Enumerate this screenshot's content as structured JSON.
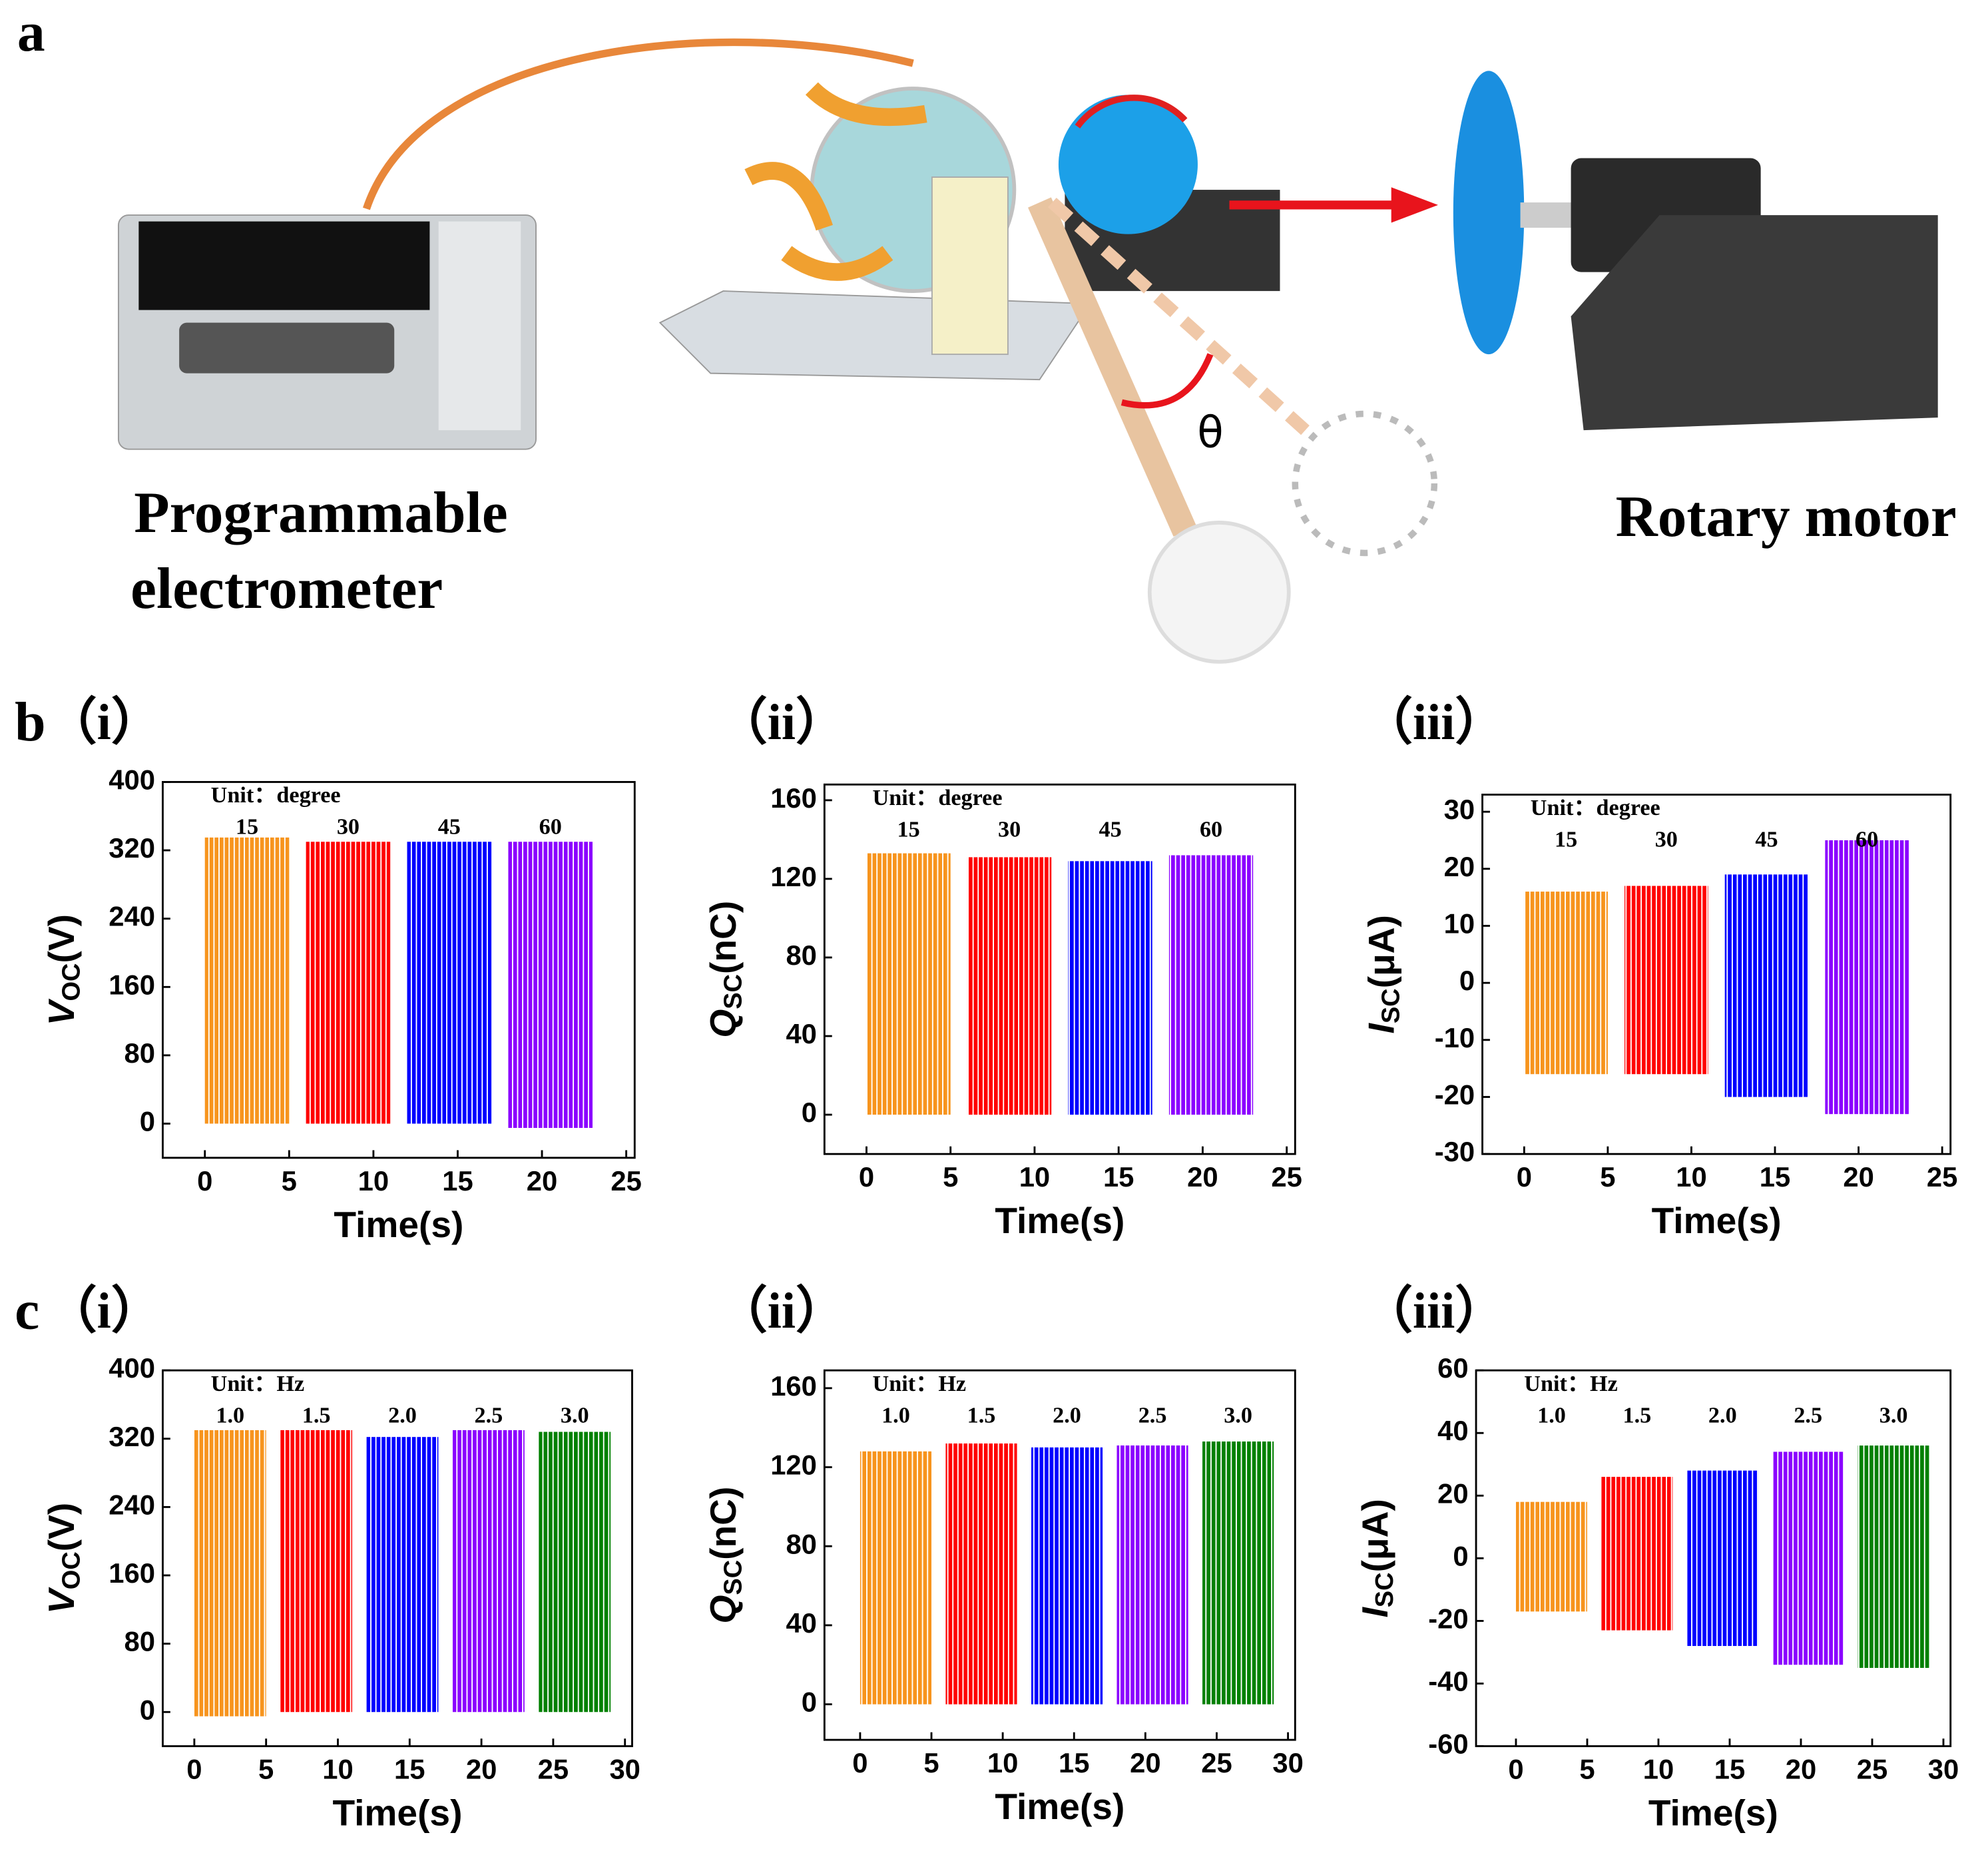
{
  "figure": {
    "a": {
      "label": "a",
      "electrometer": [
        "Programmable",
        "electrometer"
      ],
      "motor": "Rotary motor",
      "theta": "θ"
    },
    "panels": [
      {
        "letter": "b",
        "roman": "（i）"
      },
      {
        "roman": "（ii）"
      },
      {
        "roman": "（iii）"
      },
      {
        "letter": "c",
        "roman": "（i）"
      },
      {
        "roman": "（ii）"
      },
      {
        "roman": "（iii）"
      }
    ]
  },
  "chart_data": [
    {
      "type": "band",
      "xlabel": "Time(s)",
      "ylabel": [
        "V",
        "OC",
        "(V)"
      ],
      "annotation": "Unit：degree",
      "xlim": [
        -2.5,
        25.5
      ],
      "ylim": [
        -40,
        400
      ],
      "xticks": [
        0,
        5,
        10,
        15,
        20,
        25
      ],
      "yticks": [
        0,
        80,
        160,
        240,
        320,
        400
      ],
      "series": [
        {
          "name": "15",
          "color": "#f7941d",
          "x": [
            0,
            5
          ],
          "values": [
            0,
            335
          ]
        },
        {
          "name": "30",
          "color": "#ff0000",
          "x": [
            6,
            11
          ],
          "values": [
            0,
            330
          ]
        },
        {
          "name": "45",
          "color": "#0000ff",
          "x": [
            12,
            17
          ],
          "values": [
            0,
            330
          ]
        },
        {
          "name": "60",
          "color": "#8b00ff",
          "x": [
            18,
            23
          ],
          "values": [
            -5,
            330
          ]
        }
      ]
    },
    {
      "type": "band",
      "xlabel": "Time(s)",
      "ylabel": [
        "Q",
        "SC",
        "(nC)"
      ],
      "annotation": "Unit：degree",
      "xlim": [
        -2.5,
        25.5
      ],
      "ylim": [
        -20,
        168
      ],
      "xticks": [
        0,
        5,
        10,
        15,
        20,
        25
      ],
      "yticks": [
        0,
        40,
        80,
        120,
        160
      ],
      "series": [
        {
          "name": "15",
          "color": "#f7941d",
          "x": [
            0,
            5
          ],
          "values": [
            0,
            133
          ]
        },
        {
          "name": "30",
          "color": "#ff0000",
          "x": [
            6,
            11
          ],
          "values": [
            0,
            131
          ]
        },
        {
          "name": "45",
          "color": "#0000ff",
          "x": [
            12,
            17
          ],
          "values": [
            0,
            129
          ]
        },
        {
          "name": "60",
          "color": "#8b00ff",
          "x": [
            18,
            23
          ],
          "values": [
            0,
            132
          ]
        }
      ]
    },
    {
      "type": "band",
      "xlabel": "Time(s)",
      "ylabel": [
        "I",
        "SC",
        "(μA)"
      ],
      "annotation": "Unit：degree",
      "xlim": [
        -2.5,
        25.5
      ],
      "ylim": [
        -30,
        33
      ],
      "xticks": [
        0,
        5,
        10,
        15,
        20,
        25
      ],
      "yticks": [
        -30,
        -20,
        -10,
        0,
        10,
        20,
        30
      ],
      "series": [
        {
          "name": "15",
          "color": "#f7941d",
          "x": [
            0,
            5
          ],
          "values": [
            -16,
            16
          ]
        },
        {
          "name": "30",
          "color": "#ff0000",
          "x": [
            6,
            11
          ],
          "values": [
            -16,
            17
          ]
        },
        {
          "name": "45",
          "color": "#0000ff",
          "x": [
            12,
            17
          ],
          "values": [
            -20,
            19
          ]
        },
        {
          "name": "60",
          "color": "#8b00ff",
          "x": [
            18,
            23
          ],
          "values": [
            -23,
            25
          ]
        }
      ]
    },
    {
      "type": "band",
      "xlabel": "Time(s)",
      "ylabel": [
        "V",
        "OC",
        "(V)"
      ],
      "annotation": "Unit：Hz",
      "xlim": [
        -2.2,
        30.5
      ],
      "ylim": [
        -40,
        400
      ],
      "xticks": [
        0,
        5,
        10,
        15,
        20,
        25,
        30
      ],
      "yticks": [
        0,
        80,
        160,
        240,
        320,
        400
      ],
      "series": [
        {
          "name": "1.0",
          "color": "#f7941d",
          "x": [
            0,
            5
          ],
          "values": [
            -5,
            330
          ]
        },
        {
          "name": "1.5",
          "color": "#ff0000",
          "x": [
            6,
            11
          ],
          "values": [
            0,
            330
          ]
        },
        {
          "name": "2.0",
          "color": "#0000ff",
          "x": [
            12,
            17
          ],
          "values": [
            0,
            322
          ]
        },
        {
          "name": "2.5",
          "color": "#8b00ff",
          "x": [
            18,
            23
          ],
          "values": [
            0,
            330
          ]
        },
        {
          "name": "3.0",
          "color": "#008000",
          "x": [
            24,
            29
          ],
          "values": [
            0,
            328
          ]
        }
      ]
    },
    {
      "type": "band",
      "xlabel": "Time(s)",
      "ylabel": [
        "Q",
        "SC",
        "(nC)"
      ],
      "annotation": "Unit：Hz",
      "xlim": [
        -2.5,
        30.5
      ],
      "ylim": [
        -18,
        169
      ],
      "xticks": [
        0,
        5,
        10,
        15,
        20,
        25,
        30
      ],
      "yticks": [
        0,
        40,
        80,
        120,
        160
      ],
      "series": [
        {
          "name": "1.0",
          "color": "#f7941d",
          "x": [
            0,
            5
          ],
          "values": [
            0,
            128
          ]
        },
        {
          "name": "1.5",
          "color": "#ff0000",
          "x": [
            6,
            11
          ],
          "values": [
            0,
            132
          ]
        },
        {
          "name": "2.0",
          "color": "#0000ff",
          "x": [
            12,
            17
          ],
          "values": [
            0,
            130
          ]
        },
        {
          "name": "2.5",
          "color": "#8b00ff",
          "x": [
            18,
            23
          ],
          "values": [
            0,
            131
          ]
        },
        {
          "name": "3.0",
          "color": "#008000",
          "x": [
            24,
            29
          ],
          "values": [
            0,
            133
          ]
        }
      ]
    },
    {
      "type": "band",
      "xlabel": "Time(s)",
      "ylabel": [
        "I",
        "SC",
        "(μA)"
      ],
      "annotation": "Unit：Hz",
      "xlim": [
        -2.8,
        30.5
      ],
      "ylim": [
        -60,
        60
      ],
      "xticks": [
        0,
        5,
        10,
        15,
        20,
        25,
        30
      ],
      "yticks": [
        -60,
        -40,
        -20,
        0,
        20,
        40,
        60
      ],
      "series": [
        {
          "name": "1.0",
          "color": "#f7941d",
          "x": [
            0,
            5
          ],
          "values": [
            -17,
            18
          ]
        },
        {
          "name": "1.5",
          "color": "#ff0000",
          "x": [
            6,
            11
          ],
          "values": [
            -23,
            26
          ]
        },
        {
          "name": "2.0",
          "color": "#0000ff",
          "x": [
            12,
            17
          ],
          "values": [
            -28,
            28
          ]
        },
        {
          "name": "2.5",
          "color": "#8b00ff",
          "x": [
            18,
            23
          ],
          "values": [
            -34,
            34
          ]
        },
        {
          "name": "3.0",
          "color": "#008000",
          "x": [
            24,
            29
          ],
          "values": [
            -35,
            36
          ]
        }
      ]
    }
  ]
}
